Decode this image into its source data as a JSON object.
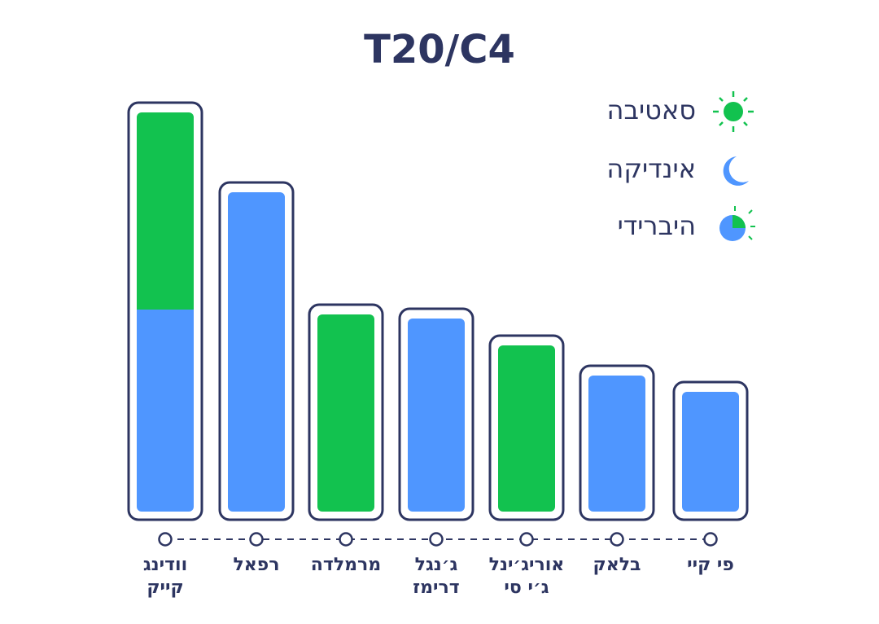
{
  "chart_data": {
    "type": "stacked-bar",
    "title": "T20/C4",
    "categories": [
      "וודינג קייק",
      "רפאל",
      "מרמלדה",
      "ג׳נגל דרימז",
      "אוריג׳ינל ג׳י סי",
      "בלאק",
      "פי קיי"
    ],
    "series": [
      {
        "name": "סאטיבה",
        "color": "#12c24f",
        "values": [
          242,
          0,
          242,
          0,
          204,
          0,
          0
        ]
      },
      {
        "name": "אינדיקה",
        "color": "#4f96ff",
        "values": [
          248,
          392,
          0,
          237,
          0,
          167,
          147
        ]
      }
    ],
    "hybrid_label": "היברידי",
    "ylim": [
      0,
      500
    ]
  }
}
